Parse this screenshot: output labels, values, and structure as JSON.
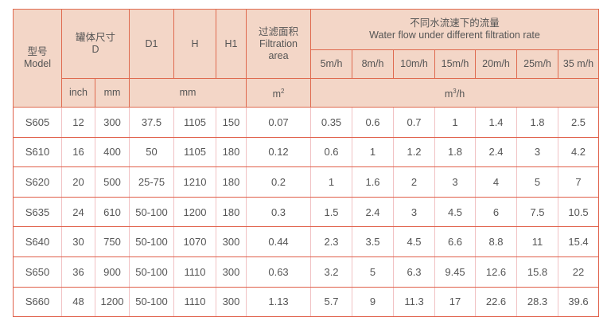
{
  "header": {
    "model_cn": "型号",
    "model_en": "Model",
    "tank_cn": "罐体尺寸",
    "tank_en": "D",
    "d1": "D1",
    "h": "H",
    "h1": "H1",
    "area_cn": "过滤面积",
    "area_en1": "Filtration",
    "area_en2": "area",
    "flow_cn": "不同水流速下的流量",
    "flow_en": "Water flow under different filtration rate",
    "rates": [
      "5m/h",
      "8m/h",
      "10m/h",
      "15m/h",
      "20m/h",
      "25m/h",
      "35 m/h"
    ],
    "unit_inch": "inch",
    "unit_mm": "mm",
    "unit_mm2": "mm",
    "unit_m": "m",
    "unit_m_sup": "2",
    "unit_flow_m": "m",
    "unit_flow_sup": "3",
    "unit_flow_rest": "/h"
  },
  "rows": [
    {
      "model": "S605",
      "inch": "12",
      "mm": "300",
      "d1": "37.5",
      "h": "1105",
      "h1": "150",
      "area": "0.07",
      "flows": [
        "0.35",
        "0.6",
        "0.7",
        "1",
        "1.4",
        "1.8",
        "2.5"
      ]
    },
    {
      "model": "S610",
      "inch": "16",
      "mm": "400",
      "d1": "50",
      "h": "1105",
      "h1": "180",
      "area": "0.12",
      "flows": [
        "0.6",
        "1",
        "1.2",
        "1.8",
        "2.4",
        "3",
        "4.2"
      ]
    },
    {
      "model": "S620",
      "inch": "20",
      "mm": "500",
      "d1": "25-75",
      "h": "1210",
      "h1": "180",
      "area": "0.2",
      "flows": [
        "1",
        "1.6",
        "2",
        "3",
        "4",
        "5",
        "7"
      ]
    },
    {
      "model": "S635",
      "inch": "24",
      "mm": "610",
      "d1": "50-100",
      "h": "1200",
      "h1": "180",
      "area": "0.3",
      "flows": [
        "1.5",
        "2.4",
        "3",
        "4.5",
        "6",
        "7.5",
        "10.5"
      ]
    },
    {
      "model": "S640",
      "inch": "30",
      "mm": "750",
      "d1": "50-100",
      "h": "1070",
      "h1": "300",
      "area": "0.44",
      "flows": [
        "2.3",
        "3.5",
        "4.5",
        "6.6",
        "8.8",
        "11",
        "15.4"
      ]
    },
    {
      "model": "S650",
      "inch": "36",
      "mm": "900",
      "d1": "50-100",
      "h": "1110",
      "h1": "300",
      "area": "0.63",
      "flows": [
        "3.2",
        "5",
        "6.3",
        "9.45",
        "12.6",
        "15.8",
        "22"
      ]
    },
    {
      "model": "S660",
      "inch": "48",
      "mm": "1200",
      "d1": "50-100",
      "h": "1110",
      "h1": "300",
      "area": "1.13",
      "flows": [
        "5.7",
        "9",
        "11.3",
        "17",
        "22.6",
        "28.3",
        "39.6"
      ]
    }
  ]
}
